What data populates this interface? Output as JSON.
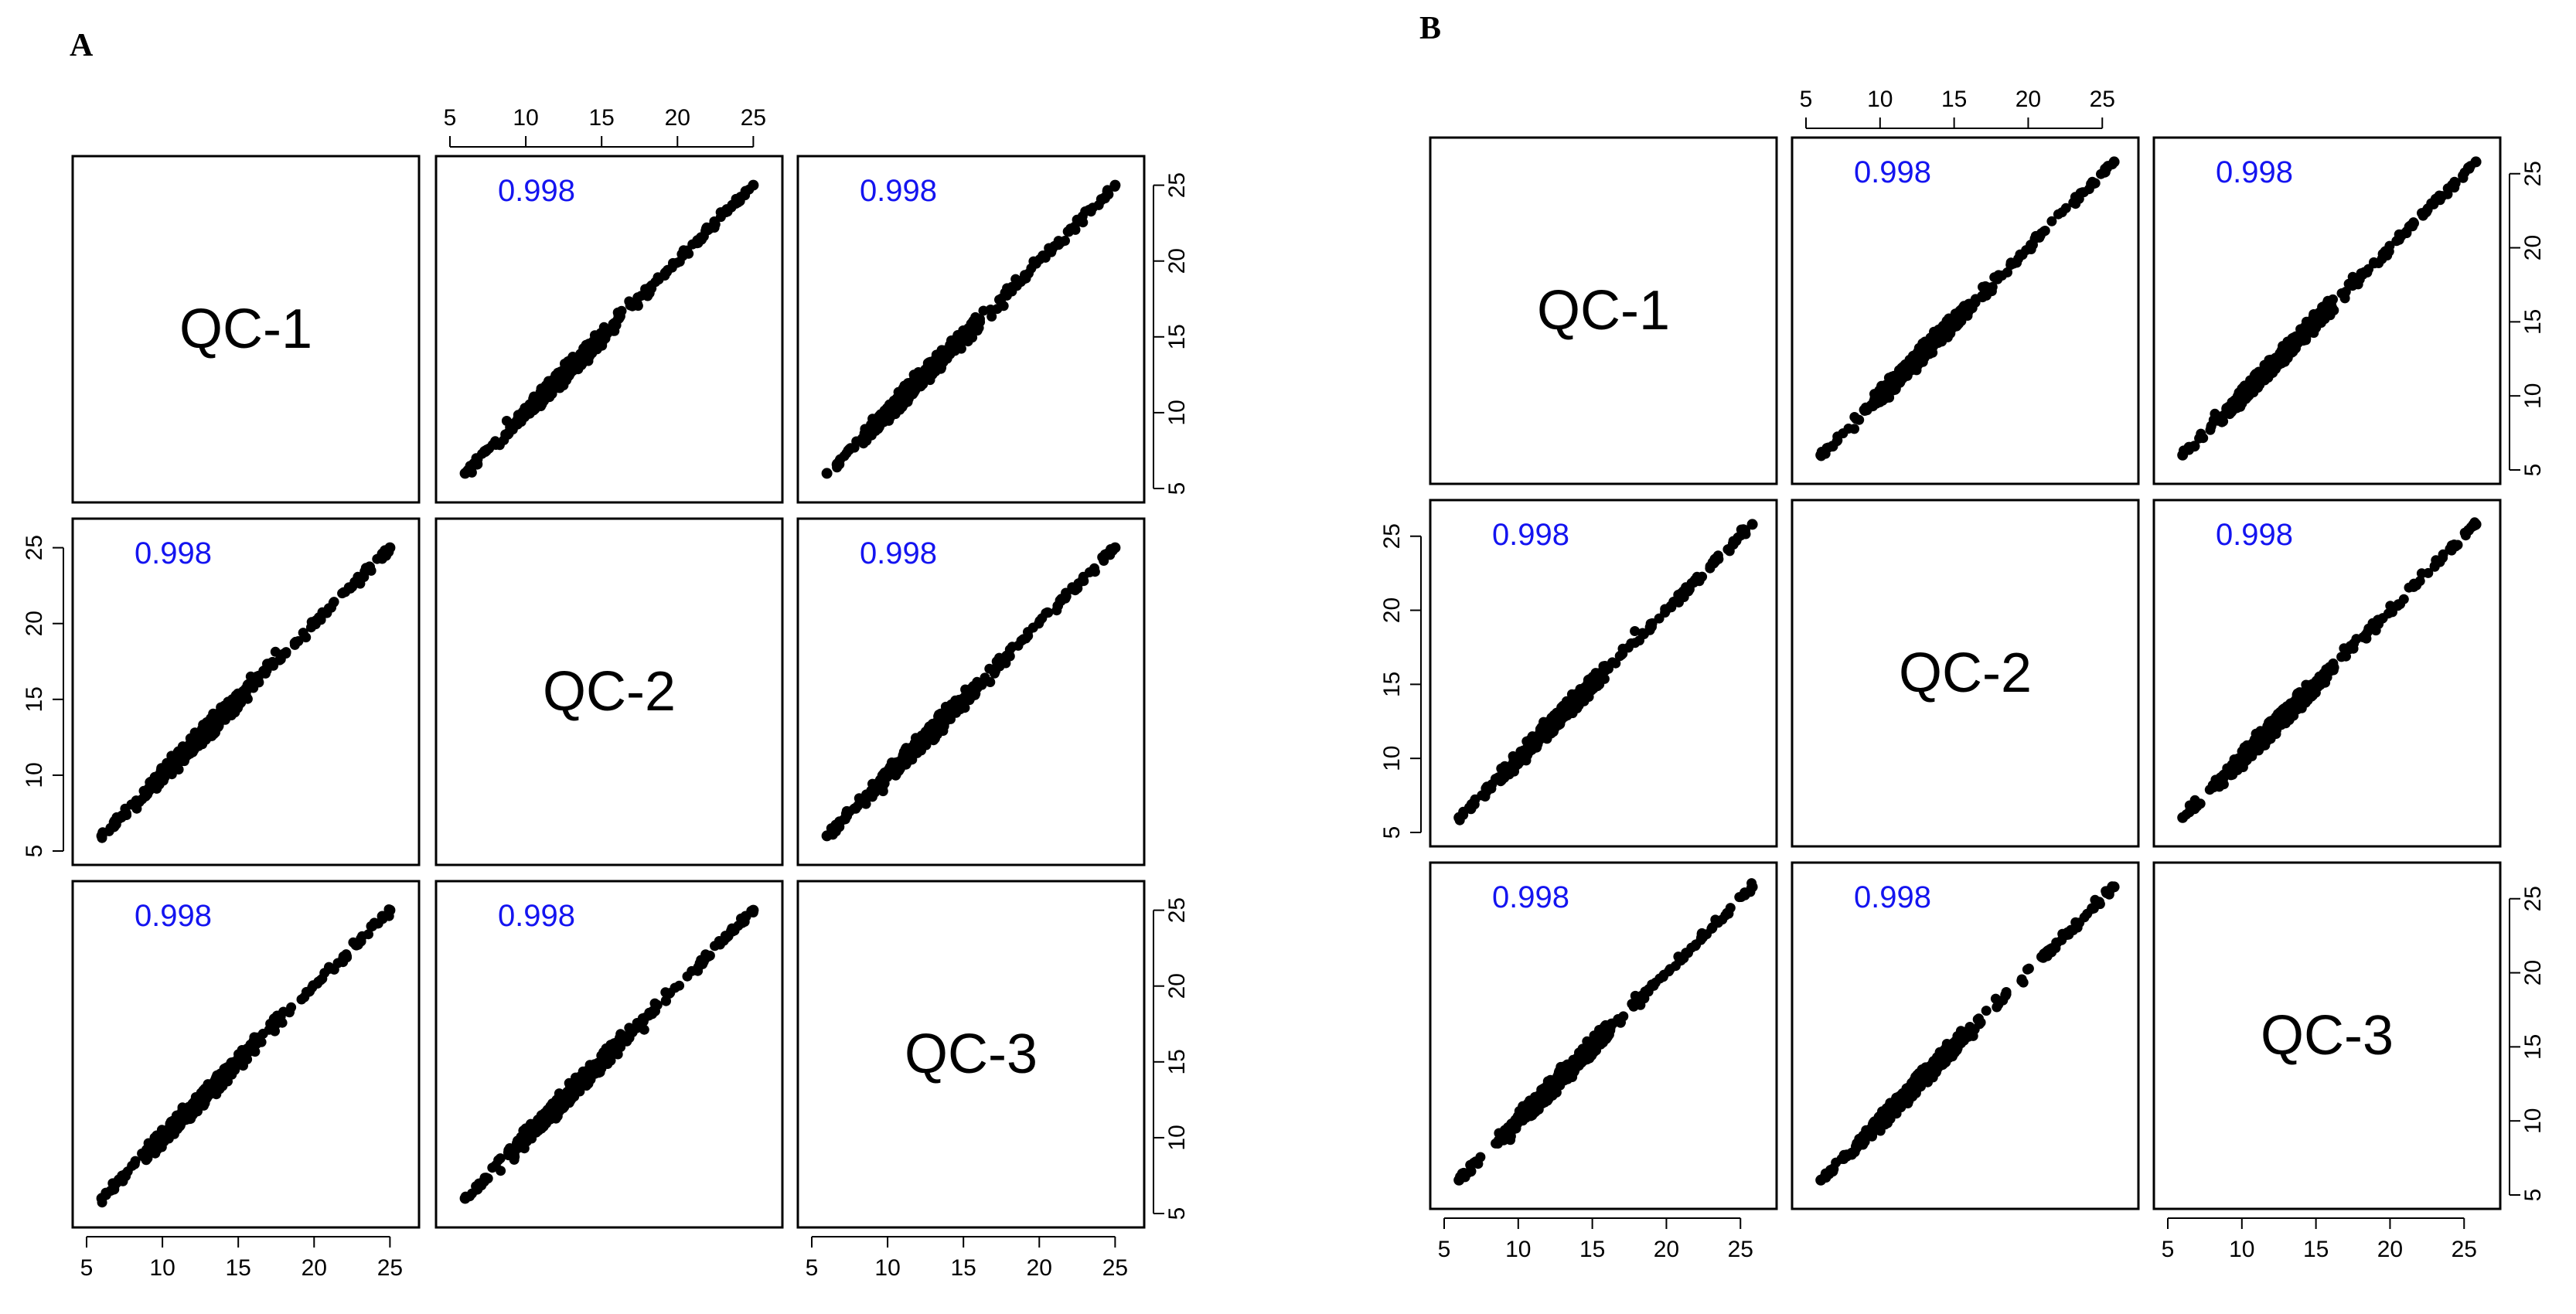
{
  "figure": {
    "panels": [
      {
        "label": "A",
        "matrix_index": 0
      },
      {
        "label": "B",
        "matrix_index": 1
      }
    ]
  },
  "colors": {
    "correlation_text": "#1414f0",
    "points": "#000000",
    "frame": "#000000",
    "background": "#ffffff"
  },
  "chart_data": [
    {
      "type": "scatter",
      "title": "A",
      "variables": [
        "QC-1",
        "QC-2",
        "QC-3"
      ],
      "axis_ticks": [
        5,
        10,
        15,
        20,
        25
      ],
      "xlim": [
        5,
        26
      ],
      "ylim": [
        5,
        26
      ],
      "correlations": [
        [
          null,
          0.998,
          0.998
        ],
        [
          0.998,
          null,
          0.998
        ],
        [
          0.998,
          0.998,
          null
        ]
      ],
      "correlation_labels": [
        [
          "",
          "0.998",
          "0.998"
        ],
        [
          "0.998",
          "",
          "0.998"
        ],
        [
          "0.998",
          "0.998",
          ""
        ]
      ],
      "point_range": [
        6.0,
        25.0
      ],
      "slope": 1.0,
      "intercept": 0.0
    },
    {
      "type": "scatter",
      "title": "B",
      "variables": [
        "QC-1",
        "QC-2",
        "QC-3"
      ],
      "axis_ticks": [
        5,
        10,
        15,
        20,
        25
      ],
      "xlim": [
        5,
        26.5
      ],
      "ylim": [
        5,
        26.5
      ],
      "correlations": [
        [
          null,
          0.998,
          0.998
        ],
        [
          0.998,
          null,
          0.998
        ],
        [
          0.998,
          0.998,
          null
        ]
      ],
      "correlation_labels": [
        [
          "",
          "0.998",
          "0.998"
        ],
        [
          "0.998",
          "",
          "0.998"
        ],
        [
          "0.998",
          "0.998",
          ""
        ]
      ],
      "point_range": [
        6.0,
        25.8
      ],
      "slope": 1.0,
      "intercept": 0.0
    }
  ]
}
